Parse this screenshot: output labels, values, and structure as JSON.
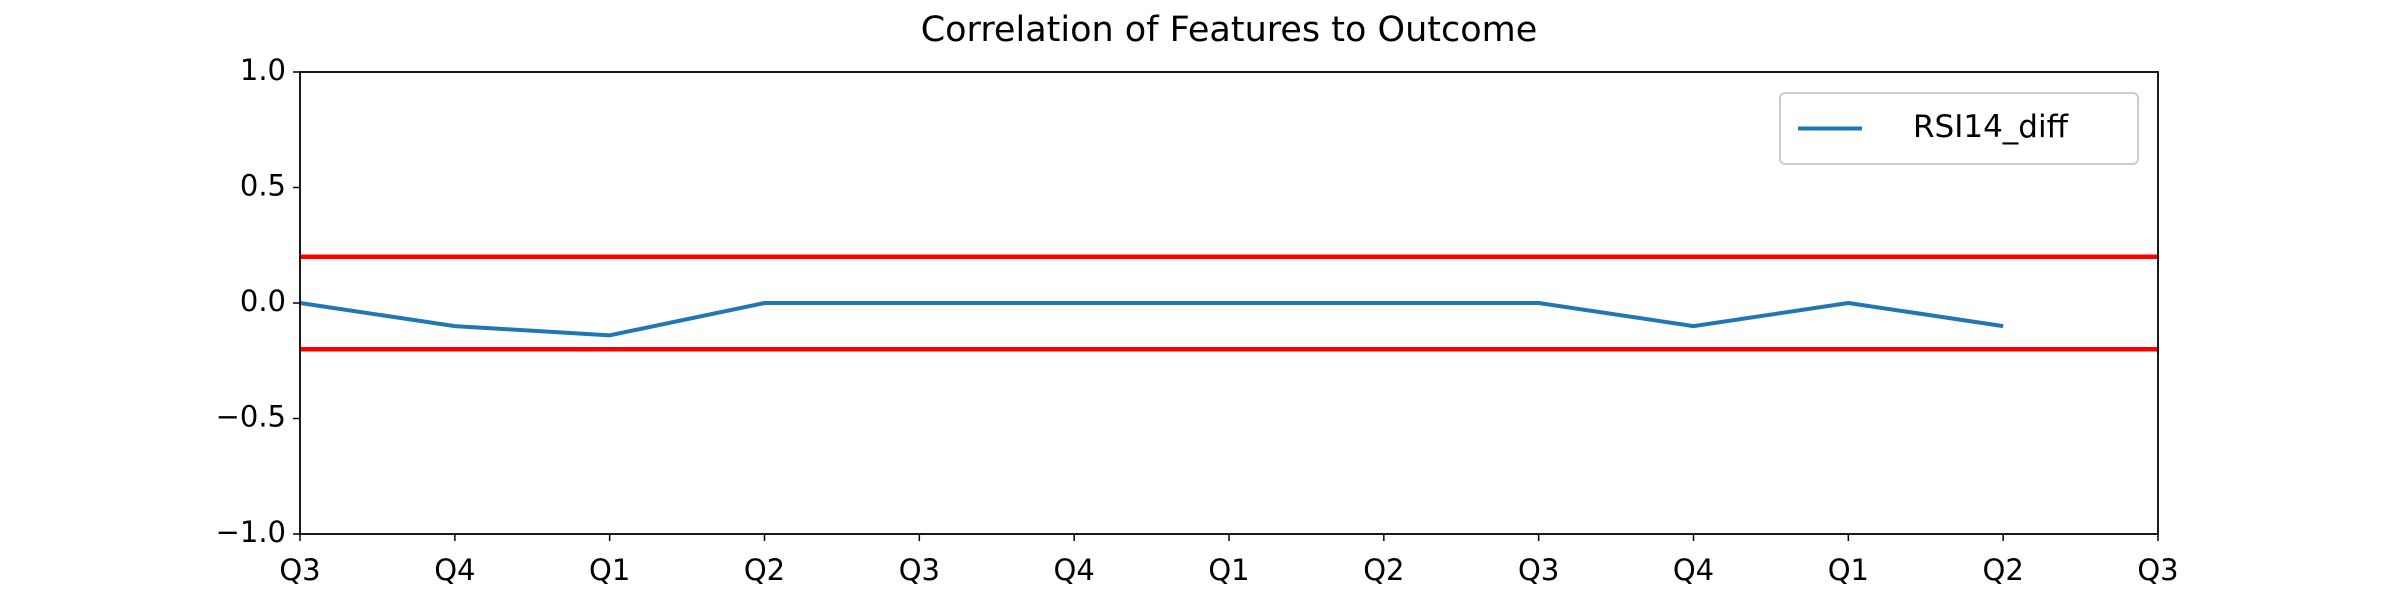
{
  "chart_data": {
    "type": "line",
    "title": "Correlation of Features to Outcome",
    "categories": [
      "Q3",
      "Q4",
      "Q1",
      "Q2",
      "Q3",
      "Q4",
      "Q1",
      "Q2",
      "Q3",
      "Q4",
      "Q1",
      "Q2",
      "Q3"
    ],
    "series": [
      {
        "name": "RSI14_diff",
        "color": "#1f77b4",
        "values": [
          0,
          -0.1,
          -0.14,
          0,
          0,
          0,
          0,
          0,
          0,
          -0.1,
          0,
          -0.1,
          null
        ]
      }
    ],
    "hlines": [
      {
        "value": 0.2,
        "color": "#ff0000"
      },
      {
        "value": -0.2,
        "color": "#ff0000"
      }
    ],
    "ylim": [
      -1,
      1
    ],
    "yticks": [
      {
        "value": -1,
        "label": "−1.0"
      },
      {
        "value": -0.5,
        "label": "−0.5"
      },
      {
        "value": 0,
        "label": "0.0"
      },
      {
        "value": 0.5,
        "label": "0.5"
      },
      {
        "value": 1,
        "label": "1.0"
      }
    ],
    "legend": "upper right",
    "grid": false
  }
}
